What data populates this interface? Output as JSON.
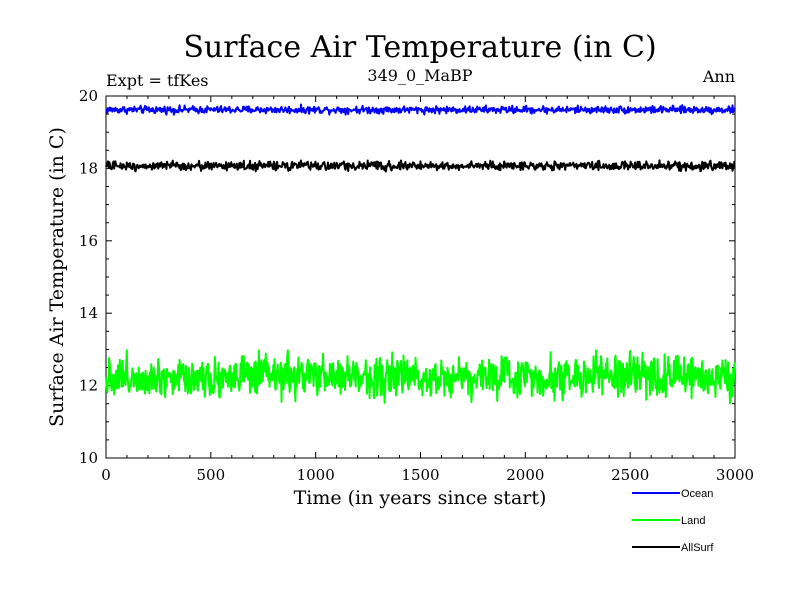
{
  "chart_data": {
    "type": "line",
    "title": "Surface Air Temperature (in C)",
    "subtitle": "349_0_MaBP",
    "left_note": "Expt = tfKes",
    "right_note": "Ann",
    "xlabel": "Time (in years since start)",
    "ylabel": "Surface Air Temperature (in C)",
    "xlim": [
      0,
      3000
    ],
    "ylim": [
      10,
      20
    ],
    "x_ticks": [
      "0",
      "500",
      "1000",
      "1500",
      "2000",
      "2500",
      "3000"
    ],
    "y_ticks": [
      "10",
      "12",
      "14",
      "16",
      "18",
      "20"
    ],
    "grid": false,
    "legend_position": "bottom-right, below plot",
    "series": [
      {
        "name": "Ocean",
        "color": "#0000ff",
        "mean": 19.62,
        "noise": 0.05,
        "x_start": 0,
        "x_end": 3000
      },
      {
        "name": "Land",
        "color": "#00ff00",
        "mean": 12.25,
        "noise": 0.28,
        "x_start": 0,
        "x_end": 3000
      },
      {
        "name": "AllSurf",
        "color": "#000000",
        "mean": 18.07,
        "noise": 0.06,
        "x_start": 0,
        "x_end": 3000
      }
    ]
  }
}
